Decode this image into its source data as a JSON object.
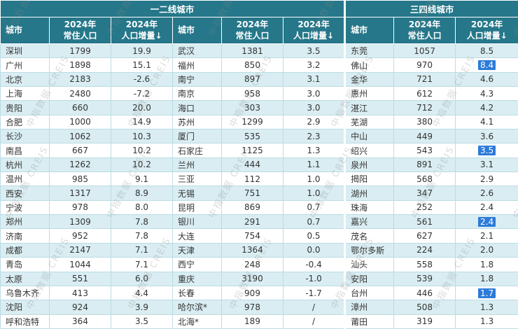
{
  "watermark": "中指数据 CREIS",
  "colors": {
    "header_bg": "#257789",
    "row_alt": "#d9edf2",
    "grid_line": "#bcdce4",
    "highlight": "#2d7bd9"
  },
  "chart_data": {
    "type": "table",
    "group_titles": [
      "一二线城市",
      "三四线城市"
    ],
    "columns": [
      "城市",
      "2024年\n常住人口",
      "2024年\n人口增量↓"
    ],
    "tables": [
      {
        "rows": [
          [
            "深圳",
            "1799",
            "19.9"
          ],
          [
            "广州",
            "1898",
            "15.1"
          ],
          [
            "北京",
            "2183",
            "-2.6"
          ],
          [
            "上海",
            "2480",
            "-7.2"
          ],
          [
            "贵阳",
            "660",
            "20.0"
          ],
          [
            "合肥",
            "1000",
            "14.9"
          ],
          [
            "长沙",
            "1062",
            "10.3"
          ],
          [
            "南昌",
            "667",
            "10.2"
          ],
          [
            "杭州",
            "1262",
            "10.2"
          ],
          [
            "温州",
            "985",
            "9.1"
          ],
          [
            "西安",
            "1317",
            "8.9"
          ],
          [
            "宁波",
            "978",
            "8.0"
          ],
          [
            "郑州",
            "1309",
            "7.8"
          ],
          [
            "济南",
            "952",
            "7.8"
          ],
          [
            "成都",
            "2147",
            "7.1"
          ],
          [
            "青岛",
            "1044",
            "7.1"
          ],
          [
            "太原",
            "551",
            "6.0"
          ],
          [
            "乌鲁木齐",
            "413",
            "4.4"
          ],
          [
            "沈阳",
            "924",
            "3.9"
          ],
          [
            "呼和浩特",
            "364",
            "3.5"
          ]
        ]
      },
      {
        "rows": [
          [
            "武汉",
            "1381",
            "3.5"
          ],
          [
            "福州",
            "850",
            "3.2"
          ],
          [
            "南宁",
            "897",
            "3.1"
          ],
          [
            "南京",
            "958",
            "3.0"
          ],
          [
            "海口",
            "303",
            "3.0"
          ],
          [
            "苏州",
            "1299",
            "2.9"
          ],
          [
            "厦门",
            "535",
            "2.3"
          ],
          [
            "石家庄",
            "1125",
            "1.3"
          ],
          [
            "兰州",
            "444",
            "1.1"
          ],
          [
            "三亚",
            "112",
            "1.0"
          ],
          [
            "无锡",
            "751",
            "1.0"
          ],
          [
            "昆明",
            "869",
            "0.7"
          ],
          [
            "银川",
            "291",
            "0.7"
          ],
          [
            "大连",
            "754",
            "0.5"
          ],
          [
            "天津",
            "1364",
            "0.0"
          ],
          [
            "西宁",
            "248",
            "-0.4"
          ],
          [
            "重庆",
            "3190",
            "-1.0"
          ],
          [
            "长春",
            "909",
            "-1.7"
          ],
          [
            "哈尔滨*",
            "978",
            "/"
          ],
          [
            "北海*",
            "189",
            "/"
          ]
        ]
      },
      {
        "rows": [
          [
            "东莞",
            "1057",
            "8.5"
          ],
          [
            "佛山",
            "970",
            "8.4"
          ],
          [
            "金华",
            "721",
            "4.6"
          ],
          [
            "惠州",
            "612",
            "4.3"
          ],
          [
            "湛江",
            "712",
            "4.2"
          ],
          [
            "芜湖",
            "380",
            "4.1"
          ],
          [
            "中山",
            "449",
            "3.6"
          ],
          [
            "绍兴",
            "543",
            "3.5"
          ],
          [
            "泉州",
            "891",
            "3.1"
          ],
          [
            "揭阳",
            "568",
            "2.9"
          ],
          [
            "湖州",
            "347",
            "2.6"
          ],
          [
            "珠海",
            "252",
            "2.4"
          ],
          [
            "嘉兴",
            "561",
            "2.4"
          ],
          [
            "茂名",
            "627",
            "2.1"
          ],
          [
            "鄂尔多斯",
            "224",
            "2.0"
          ],
          [
            "汕头",
            "558",
            "1.8"
          ],
          [
            "安阳",
            "539",
            "1.8"
          ],
          [
            "台州",
            "446",
            "1.7"
          ],
          [
            "漳州",
            "508",
            "1.3"
          ],
          [
            "莆田",
            "319",
            "1.3"
          ]
        ]
      }
    ],
    "highlighted_cells": [
      {
        "table": 2,
        "row": 1
      },
      {
        "table": 2,
        "row": 7
      },
      {
        "table": 2,
        "row": 12
      },
      {
        "table": 2,
        "row": 17
      }
    ]
  }
}
